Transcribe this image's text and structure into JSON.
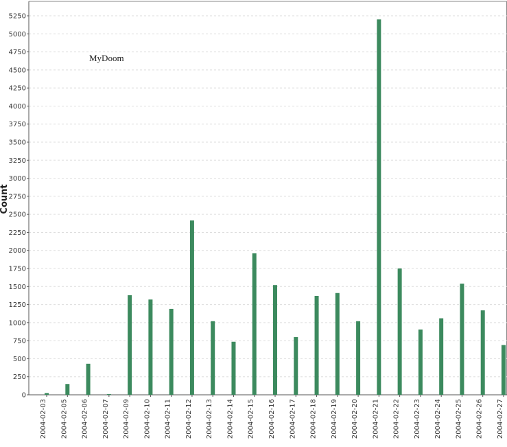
{
  "chart_data": {
    "type": "bar",
    "annotation": "MyDoom",
    "y_label": "Count",
    "categories": [
      "2004-02-03",
      "2004-02-05",
      "2004-02-06",
      "2004-02-07",
      "2004-02-09",
      "2004-02-10",
      "2004-02-11",
      "2004-02-12",
      "2004-02-13",
      "2004-02-14",
      "2004-02-15",
      "2004-02-16",
      "2004-02-17",
      "2004-02-18",
      "2004-02-19",
      "2004-02-20",
      "2004-02-21",
      "2004-02-22",
      "2004-02-23",
      "2004-02-24",
      "2004-02-25",
      "2004-02-26",
      "2004-02-27"
    ],
    "values": [
      25,
      150,
      430,
      10,
      1380,
      1320,
      1190,
      2415,
      1020,
      735,
      1960,
      1520,
      800,
      1370,
      1410,
      1020,
      5200,
      1750,
      905,
      1060,
      1540,
      1170,
      690
    ],
    "color": "#3c8a5e",
    "ylim": [
      0,
      5450
    ],
    "yticks": [
      0,
      250,
      500,
      750,
      1000,
      1250,
      1500,
      1750,
      2000,
      2250,
      2500,
      2750,
      3000,
      3250,
      3500,
      3750,
      4000,
      4250,
      4500,
      4750,
      5000,
      5250
    ],
    "grid": true
  }
}
